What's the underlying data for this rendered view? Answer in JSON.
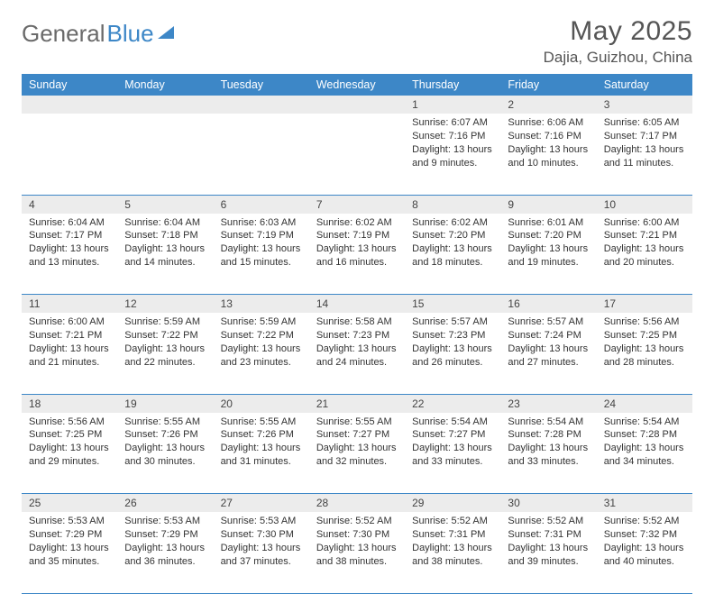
{
  "brand": {
    "part1": "General",
    "part2": "Blue"
  },
  "title": "May 2025",
  "location": "Dajia, Guizhou, China",
  "colors": {
    "accent": "#3d87c7",
    "daynum_bg": "#ececec",
    "text": "#333333"
  },
  "weekdays": [
    "Sunday",
    "Monday",
    "Tuesday",
    "Wednesday",
    "Thursday",
    "Friday",
    "Saturday"
  ],
  "weeks": [
    [
      null,
      null,
      null,
      null,
      {
        "n": "1",
        "sr": "6:07 AM",
        "ss": "7:16 PM",
        "dl": "13 hours and 9 minutes."
      },
      {
        "n": "2",
        "sr": "6:06 AM",
        "ss": "7:16 PM",
        "dl": "13 hours and 10 minutes."
      },
      {
        "n": "3",
        "sr": "6:05 AM",
        "ss": "7:17 PM",
        "dl": "13 hours and 11 minutes."
      }
    ],
    [
      {
        "n": "4",
        "sr": "6:04 AM",
        "ss": "7:17 PM",
        "dl": "13 hours and 13 minutes."
      },
      {
        "n": "5",
        "sr": "6:04 AM",
        "ss": "7:18 PM",
        "dl": "13 hours and 14 minutes."
      },
      {
        "n": "6",
        "sr": "6:03 AM",
        "ss": "7:19 PM",
        "dl": "13 hours and 15 minutes."
      },
      {
        "n": "7",
        "sr": "6:02 AM",
        "ss": "7:19 PM",
        "dl": "13 hours and 16 minutes."
      },
      {
        "n": "8",
        "sr": "6:02 AM",
        "ss": "7:20 PM",
        "dl": "13 hours and 18 minutes."
      },
      {
        "n": "9",
        "sr": "6:01 AM",
        "ss": "7:20 PM",
        "dl": "13 hours and 19 minutes."
      },
      {
        "n": "10",
        "sr": "6:00 AM",
        "ss": "7:21 PM",
        "dl": "13 hours and 20 minutes."
      }
    ],
    [
      {
        "n": "11",
        "sr": "6:00 AM",
        "ss": "7:21 PM",
        "dl": "13 hours and 21 minutes."
      },
      {
        "n": "12",
        "sr": "5:59 AM",
        "ss": "7:22 PM",
        "dl": "13 hours and 22 minutes."
      },
      {
        "n": "13",
        "sr": "5:59 AM",
        "ss": "7:22 PM",
        "dl": "13 hours and 23 minutes."
      },
      {
        "n": "14",
        "sr": "5:58 AM",
        "ss": "7:23 PM",
        "dl": "13 hours and 24 minutes."
      },
      {
        "n": "15",
        "sr": "5:57 AM",
        "ss": "7:23 PM",
        "dl": "13 hours and 26 minutes."
      },
      {
        "n": "16",
        "sr": "5:57 AM",
        "ss": "7:24 PM",
        "dl": "13 hours and 27 minutes."
      },
      {
        "n": "17",
        "sr": "5:56 AM",
        "ss": "7:25 PM",
        "dl": "13 hours and 28 minutes."
      }
    ],
    [
      {
        "n": "18",
        "sr": "5:56 AM",
        "ss": "7:25 PM",
        "dl": "13 hours and 29 minutes."
      },
      {
        "n": "19",
        "sr": "5:55 AM",
        "ss": "7:26 PM",
        "dl": "13 hours and 30 minutes."
      },
      {
        "n": "20",
        "sr": "5:55 AM",
        "ss": "7:26 PM",
        "dl": "13 hours and 31 minutes."
      },
      {
        "n": "21",
        "sr": "5:55 AM",
        "ss": "7:27 PM",
        "dl": "13 hours and 32 minutes."
      },
      {
        "n": "22",
        "sr": "5:54 AM",
        "ss": "7:27 PM",
        "dl": "13 hours and 33 minutes."
      },
      {
        "n": "23",
        "sr": "5:54 AM",
        "ss": "7:28 PM",
        "dl": "13 hours and 33 minutes."
      },
      {
        "n": "24",
        "sr": "5:54 AM",
        "ss": "7:28 PM",
        "dl": "13 hours and 34 minutes."
      }
    ],
    [
      {
        "n": "25",
        "sr": "5:53 AM",
        "ss": "7:29 PM",
        "dl": "13 hours and 35 minutes."
      },
      {
        "n": "26",
        "sr": "5:53 AM",
        "ss": "7:29 PM",
        "dl": "13 hours and 36 minutes."
      },
      {
        "n": "27",
        "sr": "5:53 AM",
        "ss": "7:30 PM",
        "dl": "13 hours and 37 minutes."
      },
      {
        "n": "28",
        "sr": "5:52 AM",
        "ss": "7:30 PM",
        "dl": "13 hours and 38 minutes."
      },
      {
        "n": "29",
        "sr": "5:52 AM",
        "ss": "7:31 PM",
        "dl": "13 hours and 38 minutes."
      },
      {
        "n": "30",
        "sr": "5:52 AM",
        "ss": "7:31 PM",
        "dl": "13 hours and 39 minutes."
      },
      {
        "n": "31",
        "sr": "5:52 AM",
        "ss": "7:32 PM",
        "dl": "13 hours and 40 minutes."
      }
    ]
  ],
  "labels": {
    "sunrise": "Sunrise:",
    "sunset": "Sunset:",
    "daylight": "Daylight:"
  }
}
